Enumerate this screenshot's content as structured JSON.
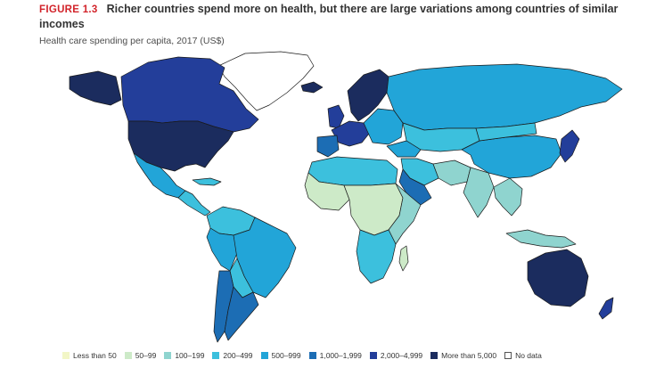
{
  "figure": {
    "label": "FIGURE 1.3",
    "title": "Richer countries spend more on health, but there are large variations among countries of similar incomes",
    "subtitle": "Health care spending per capita, 2017 (US$)"
  },
  "legend": [
    {
      "label": "Less than 50",
      "color": "#f2f6c6"
    },
    {
      "label": "50–99",
      "color": "#cdeac8"
    },
    {
      "label": "100–199",
      "color": "#8fd4cf"
    },
    {
      "label": "200–499",
      "color": "#3cc0dd"
    },
    {
      "label": "500–999",
      "color": "#22a5d8"
    },
    {
      "label": "1,000–1,999",
      "color": "#1c6db4"
    },
    {
      "label": "2,000–4,999",
      "color": "#233e9a"
    },
    {
      "label": "More than 5,000",
      "color": "#1b2c5e"
    },
    {
      "label": "No data",
      "color": "#ffffff"
    }
  ],
  "colors": {
    "border": "#1a1a1a",
    "background": "#ffffff",
    "figure_label": "#d2232a"
  }
}
